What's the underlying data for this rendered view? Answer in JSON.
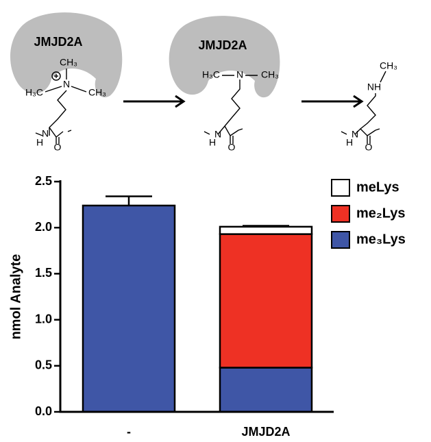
{
  "diagram": {
    "molecules": [
      {
        "enzyme": "JMJD2A",
        "atoms": [
          "CH₃",
          "H₃C",
          "N",
          "CH₃",
          "N",
          "H",
          "O"
        ]
      },
      {
        "enzyme": "JMJD2A",
        "atoms": [
          "H₃C",
          "N",
          "CH₃",
          "N",
          "H",
          "O"
        ]
      },
      {
        "atoms": [
          "CH₃",
          "NH",
          "N",
          "H",
          "O"
        ]
      }
    ]
  },
  "chart_data": {
    "type": "stacked-bar",
    "y_label": "nmol Analyte",
    "categories": [
      "-",
      "JMJD2A"
    ],
    "series": [
      {
        "name": "me₃Lys",
        "color": "#3f56a6",
        "values": [
          2.24,
          0.48
        ],
        "errors": [
          0.1,
          0.02
        ]
      },
      {
        "name": "me₂Lys",
        "color": "#ee3124",
        "values": [
          null,
          1.45
        ],
        "errors": [
          null,
          null
        ]
      },
      {
        "name": "meLys",
        "color": "#ffffff",
        "values": [
          null,
          0.08
        ],
        "errors": [
          null,
          0.01
        ]
      }
    ],
    "ylim": [
      0,
      2.5
    ],
    "yticks": [
      {
        "value": 0,
        "label": "0.0"
      },
      {
        "value": 0.5,
        "label": "0.5"
      },
      {
        "value": 1,
        "label": "1.0"
      },
      {
        "value": 1.5,
        "label": "1.5"
      },
      {
        "value": 2,
        "label": "2.0"
      },
      {
        "value": 2.5,
        "label": "2.5"
      }
    ],
    "legend": "top-right"
  }
}
